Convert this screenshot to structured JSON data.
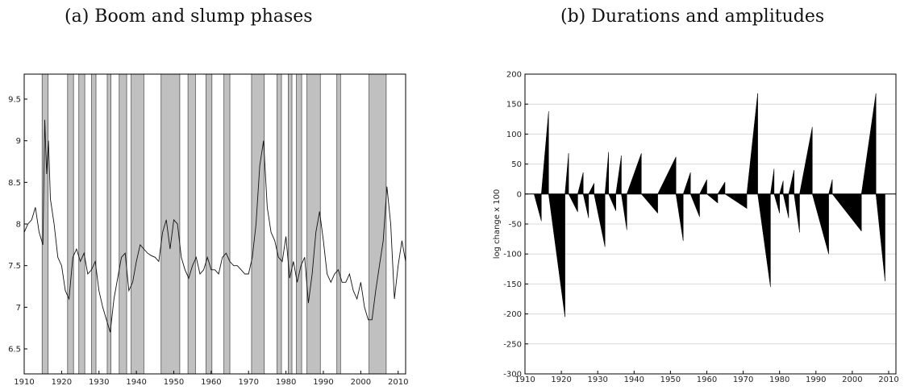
{
  "panels": {
    "a": {
      "title": "(a) Boom and slump phases"
    },
    "b": {
      "title": "(b) Durations and amplitudes"
    }
  },
  "chart_data": [
    {
      "type": "line",
      "title": "(a) Boom and slump phases",
      "xlim": [
        1910,
        2012
      ],
      "ylim": [
        6.2,
        9.8
      ],
      "x_ticks": [
        1910,
        1920,
        1930,
        1940,
        1950,
        1960,
        1970,
        1980,
        1990,
        2000,
        2010
      ],
      "y_ticks": [
        6.5,
        7,
        7.5,
        8,
        8.5,
        9,
        9.5
      ],
      "shaded_phases": [
        [
          1914.8,
          1916.4
        ],
        [
          1921.6,
          1923.2
        ],
        [
          1924.6,
          1926.2
        ],
        [
          1928.0,
          1929.2
        ],
        [
          1932.2,
          1933.2
        ],
        [
          1935.4,
          1937.4
        ],
        [
          1938.6,
          1942.0
        ],
        [
          1946.6,
          1951.6
        ],
        [
          1953.8,
          1955.8
        ],
        [
          1958.6,
          1960.2
        ],
        [
          1963.4,
          1965.0
        ],
        [
          1970.8,
          1974.2
        ],
        [
          1977.6,
          1978.8
        ],
        [
          1980.6,
          1981.6
        ],
        [
          1982.8,
          1984.2
        ],
        [
          1985.6,
          1989.2
        ],
        [
          1993.6,
          1994.6
        ],
        [
          2002.2,
          2006.8
        ]
      ],
      "series": [
        {
          "x": [
            1910,
            1911,
            1912,
            1913,
            1914,
            1915,
            1915.5,
            1916,
            1916.5,
            1917,
            1918,
            1919,
            1920,
            1921,
            1922,
            1923,
            1924,
            1925,
            1926,
            1927,
            1928,
            1929,
            1930,
            1931,
            1932,
            1933,
            1934,
            1935,
            1936,
            1937,
            1938,
            1939,
            1940,
            1941,
            1942,
            1943,
            1944,
            1945,
            1946,
            1947,
            1948,
            1949,
            1950,
            1951,
            1952,
            1953,
            1954,
            1955,
            1956,
            1957,
            1958,
            1959,
            1960,
            1961,
            1962,
            1963,
            1964,
            1965,
            1966,
            1967,
            1968,
            1969,
            1970,
            1971,
            1972,
            1973,
            1974,
            1975,
            1976,
            1977,
            1978,
            1979,
            1980,
            1981,
            1982,
            1983,
            1984,
            1985,
            1986,
            1987,
            1988,
            1989,
            1990,
            1991,
            1992,
            1993,
            1994,
            1995,
            1996,
            1997,
            1998,
            1999,
            2000,
            2001,
            2002,
            2003,
            2004,
            2005,
            2006,
            2007,
            2008,
            2009,
            2010,
            2011,
            2012
          ],
          "values": [
            7.9,
            8.0,
            8.05,
            8.2,
            7.9,
            7.75,
            9.25,
            8.6,
            9.0,
            8.3,
            8.0,
            7.6,
            7.5,
            7.2,
            7.1,
            7.6,
            7.7,
            7.55,
            7.65,
            7.4,
            7.45,
            7.55,
            7.2,
            7.0,
            6.85,
            6.7,
            7.1,
            7.35,
            7.6,
            7.65,
            7.2,
            7.3,
            7.55,
            7.75,
            7.7,
            7.65,
            7.62,
            7.6,
            7.55,
            7.9,
            8.05,
            7.7,
            8.05,
            8.0,
            7.6,
            7.45,
            7.35,
            7.5,
            7.6,
            7.4,
            7.45,
            7.6,
            7.45,
            7.45,
            7.4,
            7.6,
            7.65,
            7.55,
            7.5,
            7.5,
            7.45,
            7.4,
            7.4,
            7.6,
            8.0,
            8.7,
            9.0,
            8.2,
            7.9,
            7.8,
            7.6,
            7.55,
            7.85,
            7.35,
            7.55,
            7.3,
            7.5,
            7.6,
            7.05,
            7.4,
            7.9,
            8.15,
            7.8,
            7.4,
            7.3,
            7.4,
            7.45,
            7.3,
            7.3,
            7.4,
            7.2,
            7.1,
            7.3,
            7.0,
            6.85,
            6.85,
            7.2,
            7.5,
            7.8,
            8.45,
            8.0,
            7.1,
            7.5,
            7.8,
            7.55
          ]
        }
      ]
    },
    {
      "type": "area",
      "title": "(b) Durations and amplitudes",
      "ylabel": "log change x 100",
      "xlim": [
        1910,
        2012
      ],
      "ylim": [
        -300,
        200
      ],
      "x_ticks": [
        1910,
        1920,
        1930,
        1940,
        1950,
        1960,
        1970,
        1980,
        1990,
        2000,
        2010
      ],
      "y_ticks": [
        200,
        150,
        100,
        50,
        0,
        -50,
        -100,
        -150,
        -200,
        -250,
        -300
      ],
      "phases": [
        {
          "start": 1912.5,
          "end": 1914.5,
          "amplitude": -45
        },
        {
          "start": 1914.5,
          "end": 1916.5,
          "amplitude": 138
        },
        {
          "start": 1916.5,
          "end": 1921.0,
          "amplitude": -205
        },
        {
          "start": 1921.0,
          "end": 1922.0,
          "amplitude": 68
        },
        {
          "start": 1922.0,
          "end": 1924.5,
          "amplitude": -30
        },
        {
          "start": 1924.5,
          "end": 1926.0,
          "amplitude": 36
        },
        {
          "start": 1926.0,
          "end": 1927.5,
          "amplitude": -40
        },
        {
          "start": 1927.5,
          "end": 1929.0,
          "amplitude": 18
        },
        {
          "start": 1929.0,
          "end": 1932.0,
          "amplitude": -88
        },
        {
          "start": 1932.0,
          "end": 1933.0,
          "amplitude": 70
        },
        {
          "start": 1933.0,
          "end": 1935.0,
          "amplitude": -28
        },
        {
          "start": 1935.0,
          "end": 1936.5,
          "amplitude": 64
        },
        {
          "start": 1936.5,
          "end": 1938.0,
          "amplitude": -60
        },
        {
          "start": 1938.0,
          "end": 1942.0,
          "amplitude": 68
        },
        {
          "start": 1942.0,
          "end": 1946.5,
          "amplitude": -32
        },
        {
          "start": 1946.5,
          "end": 1951.5,
          "amplitude": 62
        },
        {
          "start": 1951.5,
          "end": 1953.5,
          "amplitude": -78
        },
        {
          "start": 1953.5,
          "end": 1955.5,
          "amplitude": 36
        },
        {
          "start": 1955.5,
          "end": 1958.0,
          "amplitude": -38
        },
        {
          "start": 1958.0,
          "end": 1960.0,
          "amplitude": 24
        },
        {
          "start": 1960.0,
          "end": 1963.0,
          "amplitude": -15
        },
        {
          "start": 1963.0,
          "end": 1965.0,
          "amplitude": 20
        },
        {
          "start": 1965.0,
          "end": 1971.0,
          "amplitude": -24
        },
        {
          "start": 1971.0,
          "end": 1974.0,
          "amplitude": 168
        },
        {
          "start": 1974.0,
          "end": 1977.5,
          "amplitude": -155
        },
        {
          "start": 1977.5,
          "end": 1978.5,
          "amplitude": 42
        },
        {
          "start": 1978.5,
          "end": 1980.0,
          "amplitude": -32
        },
        {
          "start": 1980.0,
          "end": 1981.0,
          "amplitude": 22
        },
        {
          "start": 1981.0,
          "end": 1982.5,
          "amplitude": -40
        },
        {
          "start": 1982.5,
          "end": 1984.0,
          "amplitude": 40
        },
        {
          "start": 1984.0,
          "end": 1985.5,
          "amplitude": -64
        },
        {
          "start": 1985.5,
          "end": 1989.0,
          "amplitude": 112
        },
        {
          "start": 1989.0,
          "end": 1993.5,
          "amplitude": -100
        },
        {
          "start": 1993.5,
          "end": 1994.5,
          "amplitude": 24
        },
        {
          "start": 1994.5,
          "end": 2002.5,
          "amplitude": -62
        },
        {
          "start": 2002.5,
          "end": 2006.5,
          "amplitude": 168
        },
        {
          "start": 2006.5,
          "end": 2009.0,
          "amplitude": -145
        }
      ]
    }
  ]
}
